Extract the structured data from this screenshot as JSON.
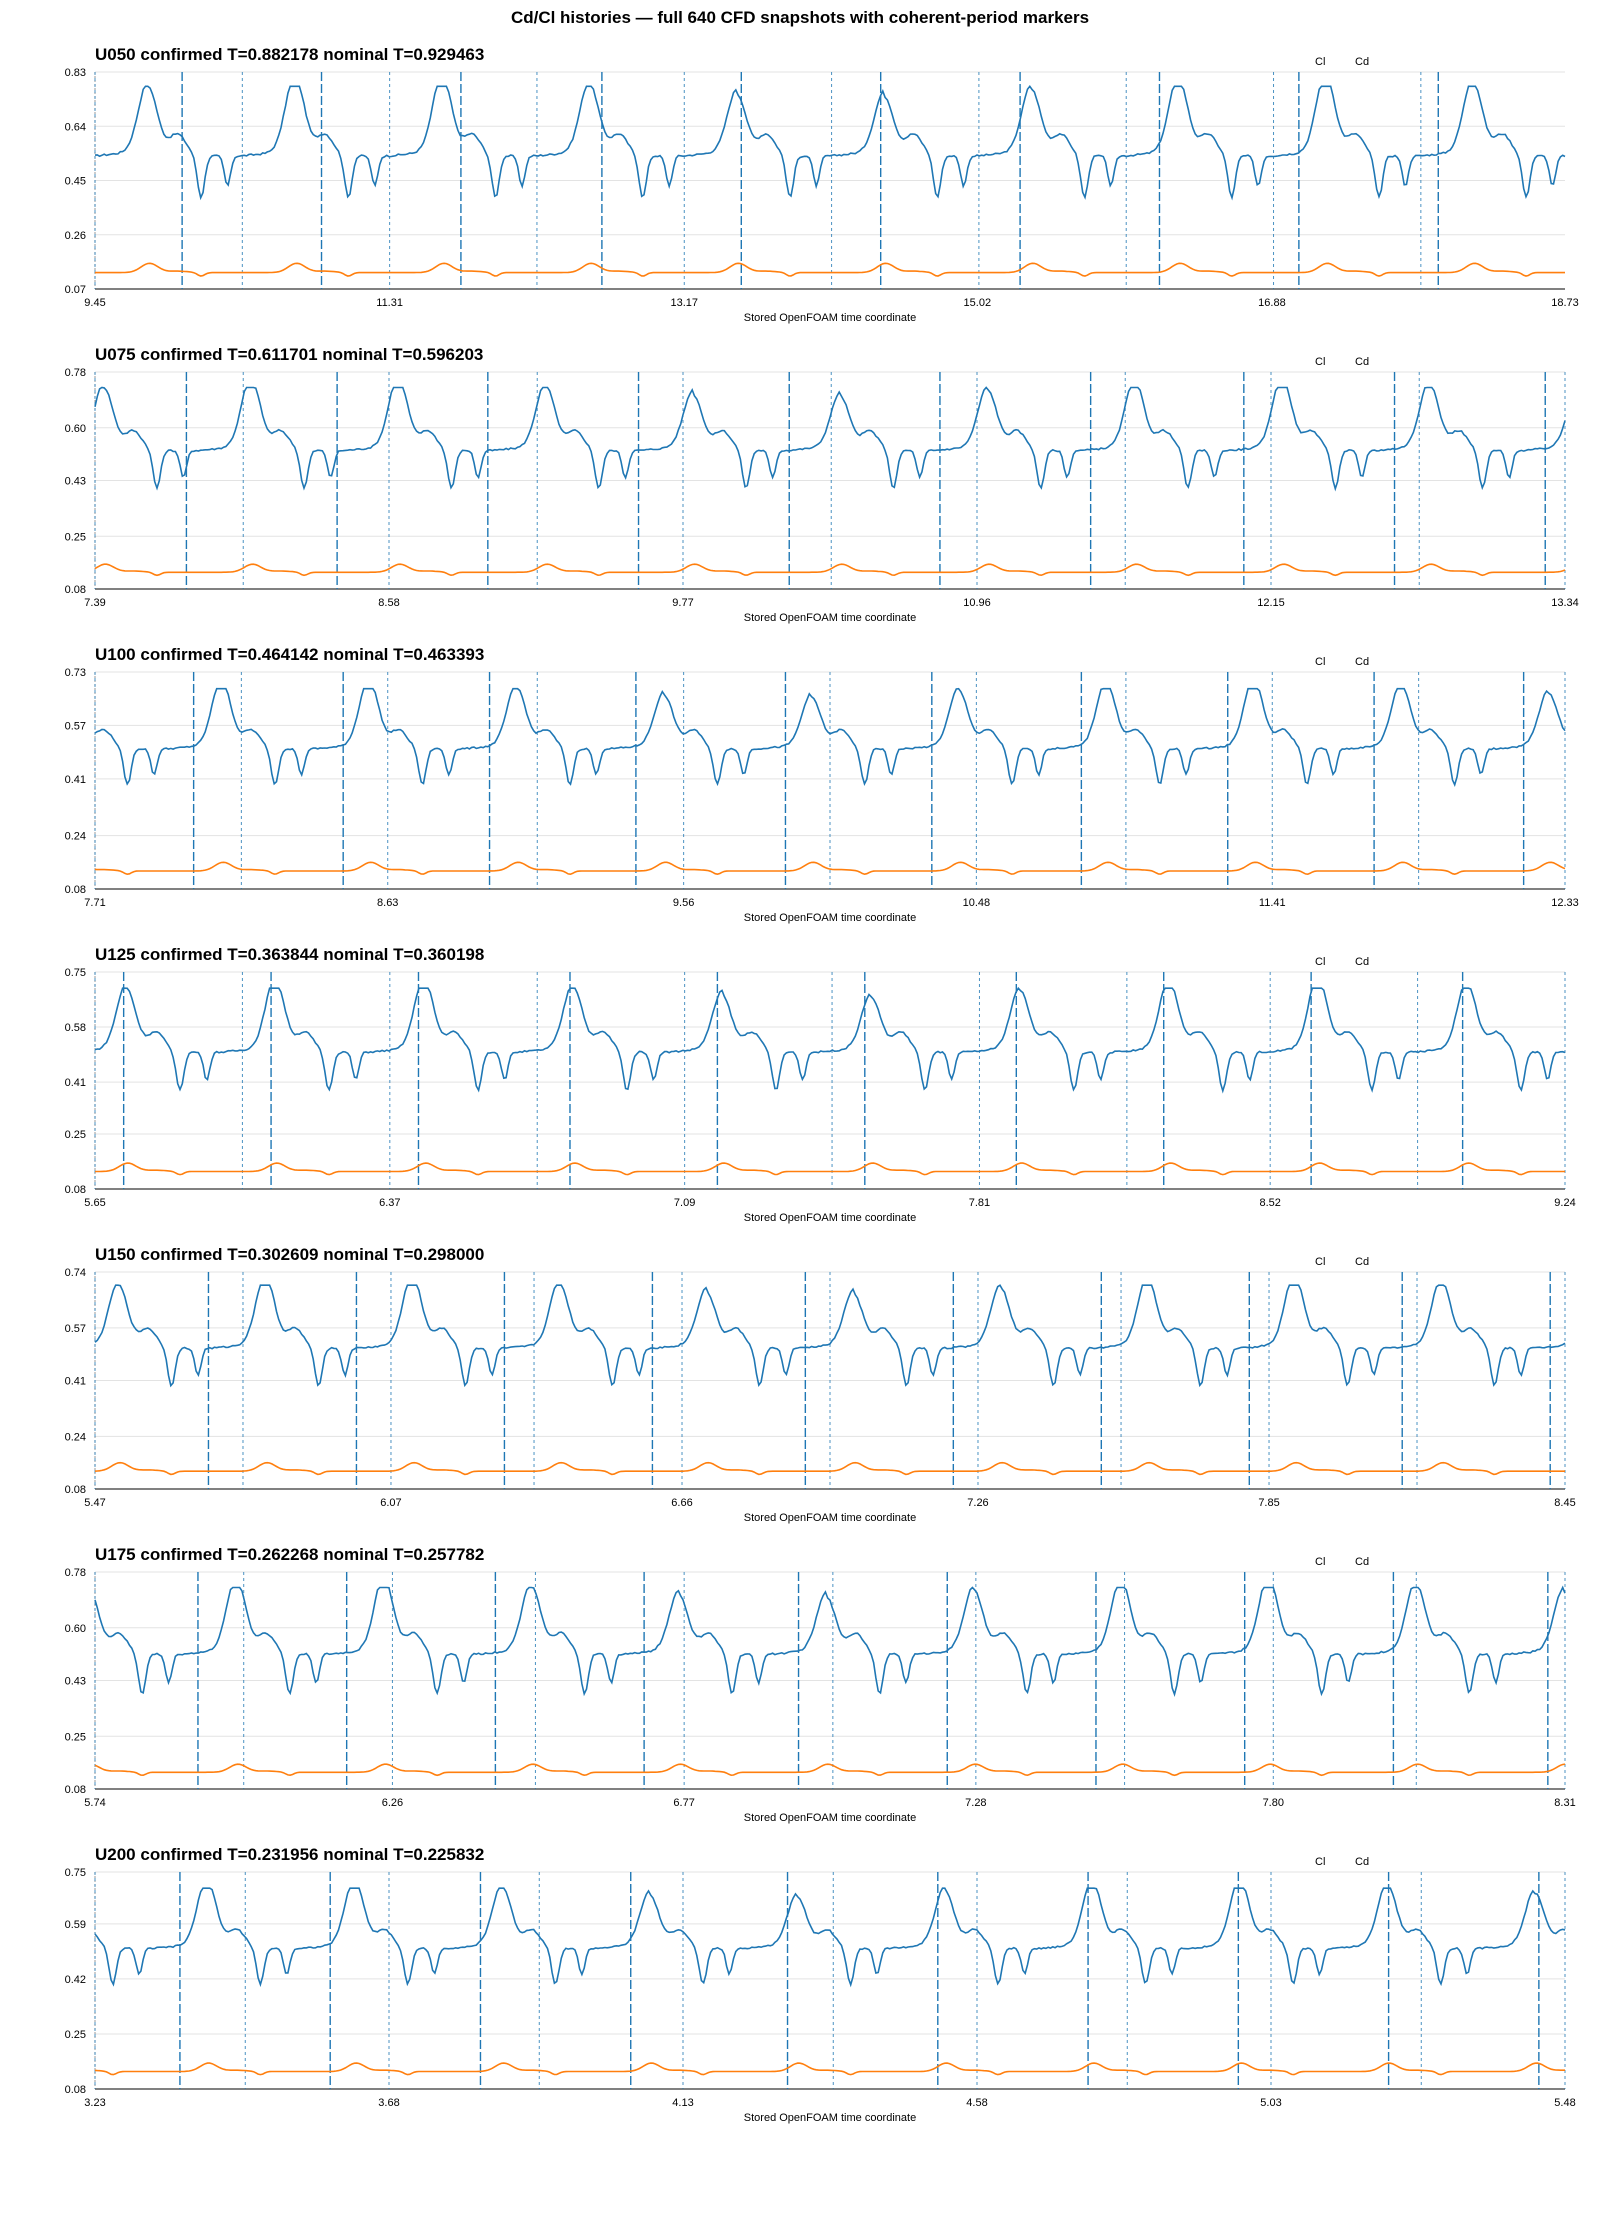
{
  "page": {
    "title": "Cd/Cl histories — full 640 CFD snapshots with coherent-period markers"
  },
  "colors": {
    "cl": "#1f77b4",
    "cd": "#ff7f0e",
    "grid": "#e3e3e3",
    "axis": "#999999"
  },
  "chart_data": [
    {
      "type": "line",
      "title": "U050  confirmed T=0.882178   nominal T=0.929463",
      "xlabel": "Stored OpenFOAM time coordinate",
      "xlim": [
        9.45,
        18.73
      ],
      "ylim": [
        0.07,
        0.83
      ],
      "xticks": [
        "9.45",
        "11.31",
        "13.17",
        "15.02",
        "16.88",
        "18.73"
      ],
      "yticks": [
        "0.07",
        "0.26",
        "0.45",
        "0.64",
        "0.83"
      ],
      "legend": {
        "position": "top-right",
        "entries": [
          "Cl",
          "Cd"
        ]
      },
      "grid": true,
      "series": [
        {
          "name": "Cl",
          "color": "#1f77b4",
          "period": 0.929463,
          "min": 0.36,
          "max": 0.78,
          "phase": 0.0
        },
        {
          "name": "Cd",
          "color": "#ff7f0e",
          "min": 0.11,
          "max": 0.16
        }
      ],
      "confirmed_markers": [
        10.0,
        10.88,
        11.76,
        12.65,
        13.53,
        14.41,
        15.29,
        16.17,
        17.05,
        17.93
      ],
      "nominal_markers": [
        9.45,
        10.38,
        11.31,
        12.24,
        13.17,
        14.1,
        15.03,
        15.96,
        16.89,
        17.82,
        18.75
      ]
    },
    {
      "type": "line",
      "title": "U075  confirmed T=0.611701   nominal T=0.596203",
      "xlabel": "Stored OpenFOAM time coordinate",
      "xlim": [
        7.39,
        13.34
      ],
      "ylim": [
        0.08,
        0.78
      ],
      "xticks": [
        "7.39",
        "8.58",
        "9.77",
        "10.96",
        "12.15",
        "13.34"
      ],
      "yticks": [
        "0.08",
        "0.25",
        "0.43",
        "0.60",
        "0.78"
      ],
      "legend": {
        "position": "top-right",
        "entries": [
          "Cl",
          "Cd"
        ]
      },
      "grid": true,
      "series": [
        {
          "name": "Cl",
          "color": "#1f77b4",
          "period": 0.596203,
          "min": 0.38,
          "max": 0.73,
          "phase": 0.3
        },
        {
          "name": "Cd",
          "color": "#ff7f0e",
          "min": 0.12,
          "max": 0.16
        }
      ],
      "confirmed_markers": [
        7.76,
        8.37,
        8.98,
        9.59,
        10.2,
        10.81,
        11.42,
        12.04,
        12.65,
        13.26
      ],
      "nominal_markers": [
        7.39,
        7.99,
        8.58,
        9.18,
        9.77,
        10.37,
        10.96,
        11.56,
        12.15,
        12.75,
        13.34
      ]
    },
    {
      "type": "line",
      "title": "U100  confirmed T=0.464142   nominal T=0.463393",
      "xlabel": "Stored OpenFOAM time coordinate",
      "xlim": [
        7.71,
        12.33
      ],
      "ylim": [
        0.08,
        0.73
      ],
      "xticks": [
        "7.71",
        "8.63",
        "9.56",
        "10.48",
        "11.41",
        "12.33"
      ],
      "yticks": [
        "0.08",
        "0.24",
        "0.41",
        "0.57",
        "0.73"
      ],
      "legend": {
        "position": "top-right",
        "entries": [
          "Cl",
          "Cd"
        ]
      },
      "grid": true,
      "series": [
        {
          "name": "Cl",
          "color": "#1f77b4",
          "period": 0.463393,
          "min": 0.37,
          "max": 0.68,
          "phase": 0.5
        },
        {
          "name": "Cd",
          "color": "#ff7f0e",
          "min": 0.12,
          "max": 0.16
        }
      ],
      "confirmed_markers": [
        8.02,
        8.49,
        8.95,
        9.41,
        9.88,
        10.34,
        10.81,
        11.27,
        11.73,
        12.2
      ],
      "nominal_markers": [
        7.71,
        8.17,
        8.63,
        9.1,
        9.56,
        10.02,
        10.48,
        10.95,
        11.41,
        11.87,
        12.33
      ]
    },
    {
      "type": "line",
      "title": "U125  confirmed T=0.363844   nominal T=0.360198",
      "xlabel": "Stored OpenFOAM time coordinate",
      "xlim": [
        5.65,
        9.24
      ],
      "ylim": [
        0.08,
        0.75
      ],
      "xticks": [
        "5.65",
        "6.37",
        "7.09",
        "7.81",
        "8.52",
        "9.24"
      ],
      "yticks": [
        "0.08",
        "0.25",
        "0.41",
        "0.58",
        "0.75"
      ],
      "legend": {
        "position": "top-right",
        "entries": [
          "Cl",
          "Cd"
        ]
      },
      "grid": true,
      "series": [
        {
          "name": "Cl",
          "color": "#1f77b4",
          "period": 0.363844,
          "min": 0.36,
          "max": 0.7,
          "phase": 0.15
        },
        {
          "name": "Cd",
          "color": "#ff7f0e",
          "min": 0.12,
          "max": 0.16
        }
      ],
      "confirmed_markers": [
        5.72,
        6.08,
        6.44,
        6.81,
        7.17,
        7.53,
        7.9,
        8.26,
        8.62,
        8.99
      ],
      "nominal_markers": [
        5.65,
        6.01,
        6.37,
        6.73,
        7.09,
        7.45,
        7.81,
        8.17,
        8.52,
        8.88,
        9.24
      ]
    },
    {
      "type": "line",
      "title": "U150  confirmed T=0.302609   nominal T=0.298000",
      "xlabel": "Stored OpenFOAM time coordinate",
      "xlim": [
        5.47,
        8.45
      ],
      "ylim": [
        0.08,
        0.74
      ],
      "xticks": [
        "5.47",
        "6.07",
        "6.66",
        "7.26",
        "7.85",
        "8.45"
      ],
      "yticks": [
        "0.08",
        "0.24",
        "0.41",
        "0.57",
        "0.74"
      ],
      "legend": {
        "position": "top-right",
        "entries": [
          "Cl",
          "Cd"
        ]
      },
      "grid": true,
      "series": [
        {
          "name": "Cl",
          "color": "#1f77b4",
          "period": 0.298,
          "min": 0.37,
          "max": 0.7,
          "phase": 0.2
        },
        {
          "name": "Cd",
          "color": "#ff7f0e",
          "min": 0.12,
          "max": 0.16
        }
      ],
      "confirmed_markers": [
        5.7,
        6.0,
        6.3,
        6.6,
        6.91,
        7.21,
        7.51,
        7.81,
        8.12,
        8.42
      ],
      "nominal_markers": [
        5.47,
        5.77,
        6.07,
        6.36,
        6.66,
        6.96,
        7.26,
        7.55,
        7.85,
        8.15,
        8.45
      ]
    },
    {
      "type": "line",
      "title": "U175  confirmed T=0.262268   nominal T=0.257782",
      "xlabel": "Stored OpenFOAM time coordinate",
      "xlim": [
        5.74,
        8.31
      ],
      "ylim": [
        0.08,
        0.78
      ],
      "xticks": [
        "5.74",
        "6.26",
        "6.77",
        "7.28",
        "7.80",
        "8.31"
      ],
      "yticks": [
        "0.08",
        "0.25",
        "0.43",
        "0.60",
        "0.78"
      ],
      "legend": {
        "position": "top-right",
        "entries": [
          "Cl",
          "Cd"
        ]
      },
      "grid": true,
      "series": [
        {
          "name": "Cl",
          "color": "#1f77b4",
          "period": 0.257782,
          "min": 0.36,
          "max": 0.73,
          "phase": 0.4
        },
        {
          "name": "Cd",
          "color": "#ff7f0e",
          "min": 0.12,
          "max": 0.16
        }
      ],
      "confirmed_markers": [
        5.92,
        6.18,
        6.44,
        6.7,
        6.97,
        7.23,
        7.49,
        7.75,
        8.01,
        8.28
      ],
      "nominal_markers": [
        5.74,
        6.0,
        6.26,
        6.51,
        6.77,
        7.03,
        7.28,
        7.54,
        7.8,
        8.05,
        8.31
      ]
    },
    {
      "type": "line",
      "title": "U200  confirmed T=0.231956   nominal T=0.225832",
      "xlabel": "Stored OpenFOAM time coordinate",
      "xlim": [
        3.23,
        5.48
      ],
      "ylim": [
        0.08,
        0.75
      ],
      "xticks": [
        "3.23",
        "3.68",
        "4.13",
        "4.58",
        "5.03",
        "5.48"
      ],
      "yticks": [
        "0.08",
        "0.25",
        "0.42",
        "0.59",
        "0.75"
      ],
      "legend": {
        "position": "top-right",
        "entries": [
          "Cl",
          "Cd"
        ]
      },
      "grid": true,
      "series": [
        {
          "name": "Cl",
          "color": "#1f77b4",
          "period": 0.225832,
          "min": 0.38,
          "max": 0.7,
          "phase": 0.6
        },
        {
          "name": "Cd",
          "color": "#ff7f0e",
          "min": 0.12,
          "max": 0.16
        }
      ],
      "confirmed_markers": [
        3.36,
        3.59,
        3.82,
        4.05,
        4.29,
        4.52,
        4.75,
        4.98,
        5.21,
        5.44
      ],
      "nominal_markers": [
        3.23,
        3.46,
        3.68,
        3.91,
        4.13,
        4.36,
        4.58,
        4.81,
        5.03,
        5.26,
        5.48
      ]
    }
  ]
}
